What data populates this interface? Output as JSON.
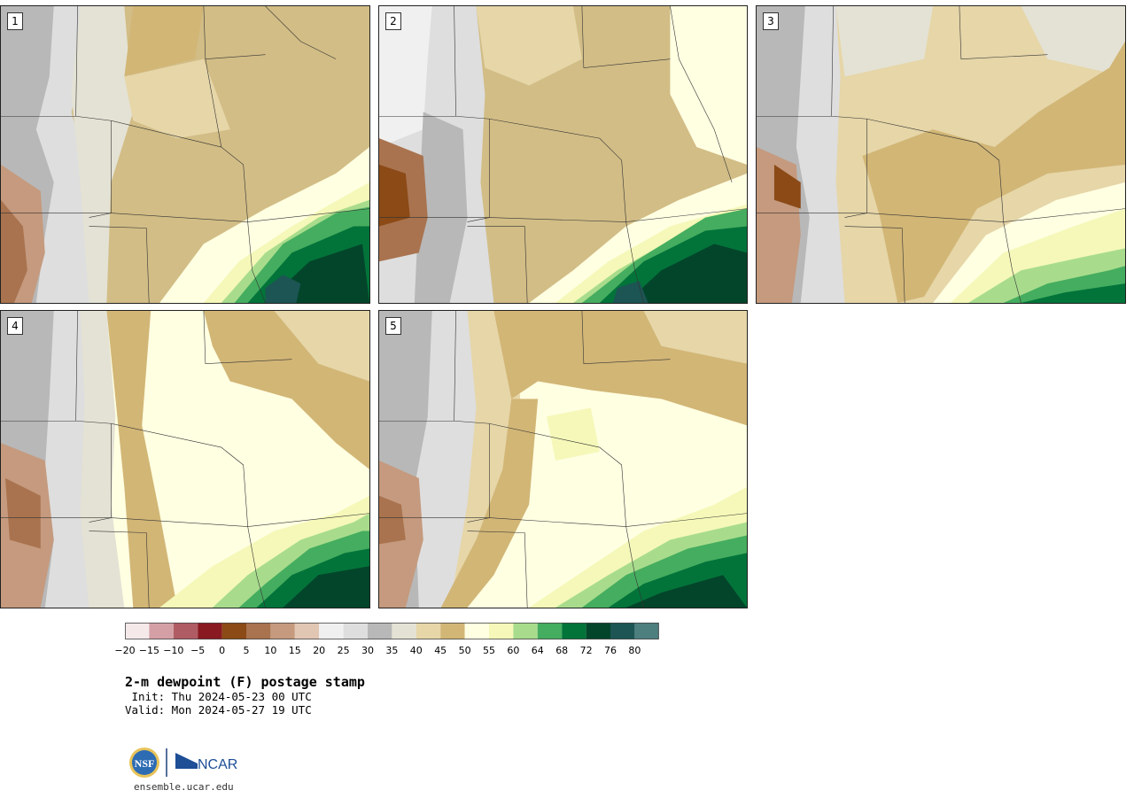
{
  "panels": [
    {
      "label": "1"
    },
    {
      "label": "2"
    },
    {
      "label": "3"
    },
    {
      "label": "4"
    },
    {
      "label": "5"
    }
  ],
  "colorbar": {
    "colors": [
      "#f5e9ea",
      "#d4a0a6",
      "#b05c64",
      "#8a1a22",
      "#8b4a16",
      "#a9734f",
      "#c59a7e",
      "#e1c6b3",
      "#f0f0f0",
      "#dedede",
      "#b8b8b8",
      "#e4e2d4",
      "#e6d6a8",
      "#d2b676",
      "#ffffe2",
      "#f5f8b8",
      "#a8dc8c",
      "#45ad5f",
      "#02743a",
      "#03452a",
      "#1c5553",
      "#4e7f7f"
    ],
    "ticks": [
      "−20",
      "−15",
      "−10",
      "−5",
      "0",
      "5",
      "10",
      "15",
      "20",
      "25",
      "30",
      "35",
      "40",
      "45",
      "50",
      "55",
      "60",
      "64",
      "68",
      "72",
      "76",
      "80"
    ]
  },
  "title": "2-m dewpoint (F) postage stamp",
  "init": " Init: Thu 2024-05-23 00 UTC",
  "valid": "Valid: Mon 2024-05-27 19 UTC",
  "logo": {
    "nsf": "NSF",
    "ncar": "NCAR"
  },
  "url": "ensemble.ucar.edu"
}
